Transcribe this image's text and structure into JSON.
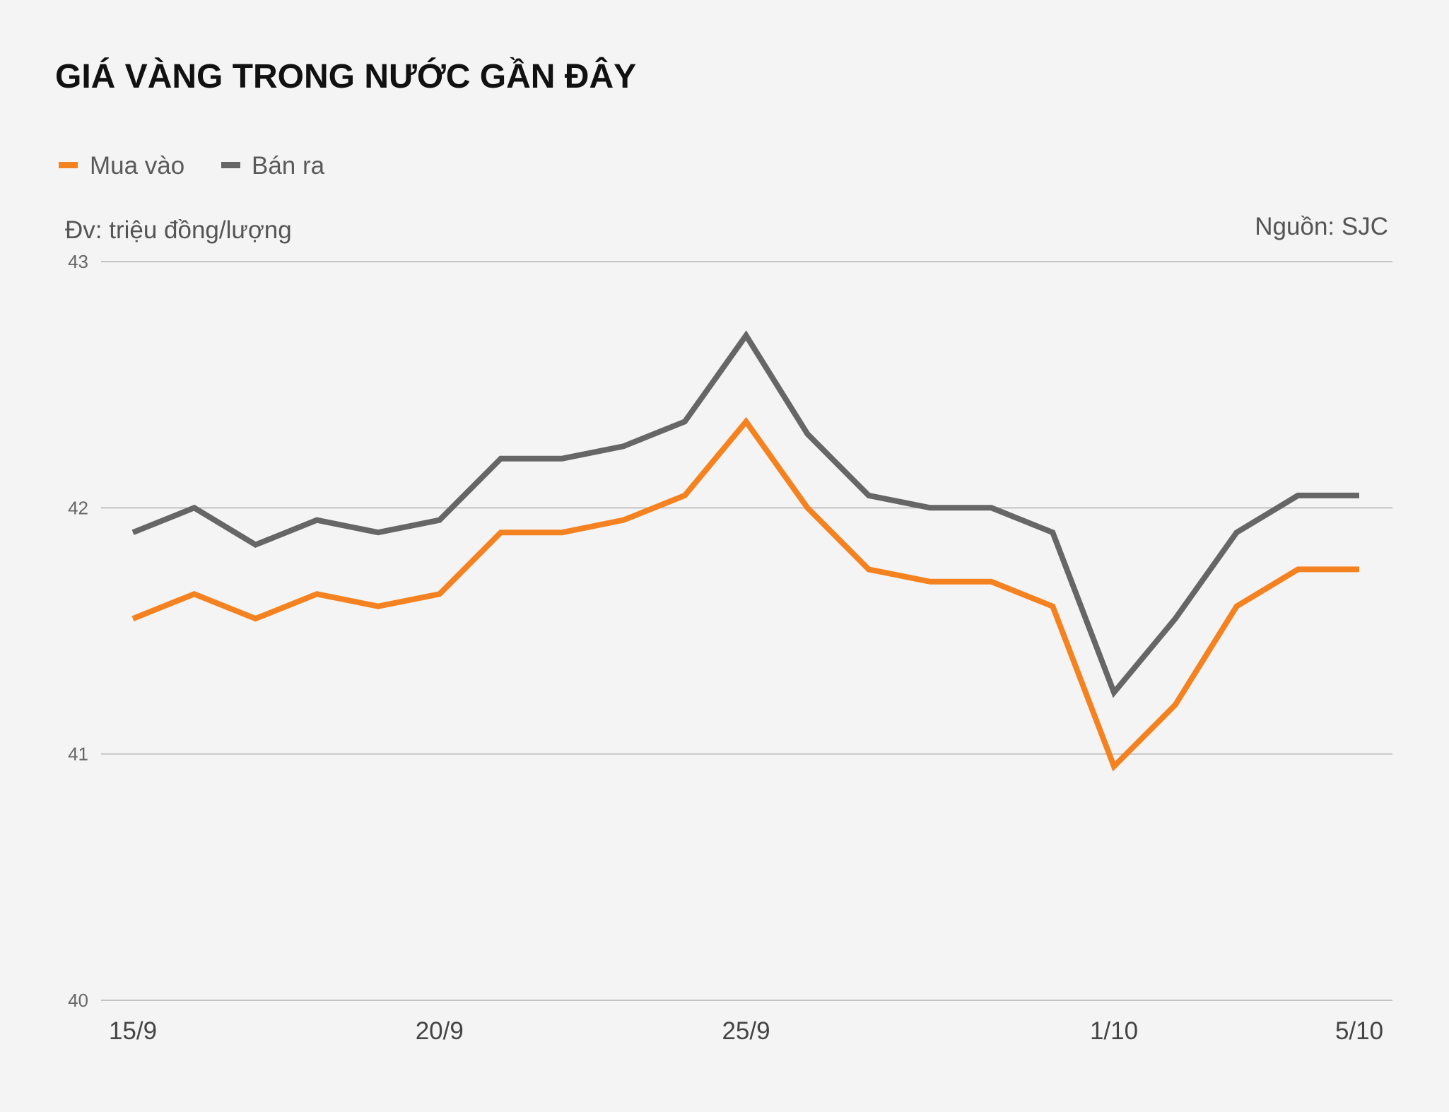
{
  "chart_data": {
    "type": "line",
    "title": "GIÁ VÀNG TRONG NƯỚC GẦN ĐÂY",
    "unit_label": "Đv: triệu đồng/lượng",
    "source_label": "Nguồn: SJC",
    "legend": [
      "Mua vào",
      "Bán ra"
    ],
    "x_tick_labels": [
      "15/9",
      "20/9",
      "25/9",
      "1/10",
      "5/10"
    ],
    "x_tick_indices": [
      0,
      5,
      10,
      16,
      20
    ],
    "y_ticks": [
      "40",
      "41",
      "42",
      "43"
    ],
    "ylim": [
      40,
      43
    ],
    "grid": true,
    "series": [
      {
        "name": "Mua vào",
        "color": "#f58220",
        "values": [
          41.55,
          41.65,
          41.55,
          41.65,
          41.6,
          41.65,
          41.9,
          41.9,
          41.95,
          42.05,
          42.35,
          42.0,
          41.75,
          41.7,
          41.7,
          41.6,
          40.95,
          41.2,
          41.6,
          41.75,
          41.75
        ]
      },
      {
        "name": "Bán ra",
        "color": "#666666",
        "values": [
          41.9,
          42.0,
          41.85,
          41.95,
          41.9,
          41.95,
          42.2,
          42.2,
          42.25,
          42.35,
          42.7,
          42.3,
          42.05,
          42.0,
          42.0,
          41.9,
          41.25,
          41.55,
          41.9,
          42.05,
          42.05
        ]
      }
    ]
  }
}
